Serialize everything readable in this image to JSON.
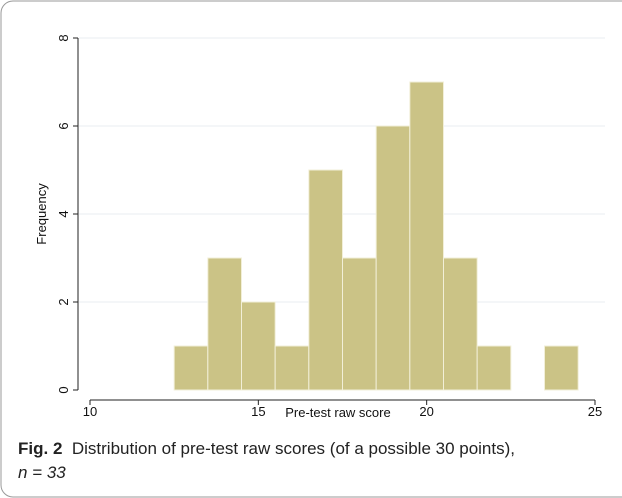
{
  "chart_data": {
    "type": "histogram",
    "xlabel": "Pre-test raw score",
    "ylabel": "Frequency",
    "bins": [
      12.5,
      13.5,
      14.5,
      15.5,
      16.5,
      17.5,
      18.5,
      19.5,
      20.5,
      21.5,
      22.5,
      23.5,
      24.5
    ],
    "values": [
      1,
      3,
      2,
      1,
      5,
      3,
      6,
      7,
      3,
      1,
      0,
      1
    ],
    "color": "#cbc386",
    "xlim": [
      10,
      25
    ],
    "xticks": [
      10,
      15,
      20,
      25
    ],
    "ylim": [
      0,
      8
    ],
    "yticks": [
      0,
      2,
      4,
      6,
      8
    ],
    "grid": true
  },
  "caption": {
    "label": "Fig. 2",
    "text": "Distribution of pre-test raw scores (of a possible 30 points),",
    "text2": "n = 33"
  }
}
